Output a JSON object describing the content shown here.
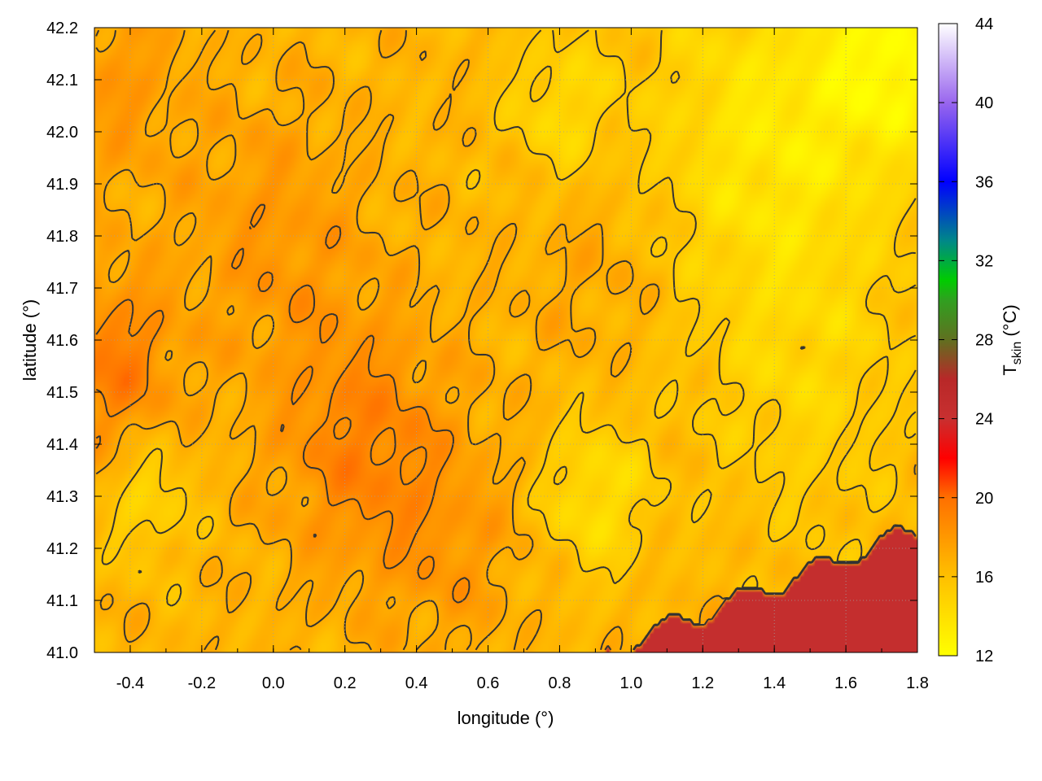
{
  "chart_data": {
    "type": "heatmap",
    "title": "",
    "xlabel": "longitude (°)",
    "ylabel": "latitude (°)",
    "xlim": [
      -0.5,
      1.8
    ],
    "ylim": [
      41.0,
      42.2
    ],
    "x_ticks": [
      "-0.4",
      "-0.2",
      "0.0",
      "0.2",
      "0.4",
      "0.6",
      "0.8",
      "1.0",
      "1.2",
      "1.4",
      "1.6",
      "1.8"
    ],
    "x_tick_values": [
      -0.4,
      -0.2,
      0.0,
      0.2,
      0.4,
      0.6,
      0.8,
      1.0,
      1.2,
      1.4,
      1.6,
      1.8
    ],
    "y_ticks": [
      "41.0",
      "41.1",
      "41.2",
      "41.3",
      "41.4",
      "41.5",
      "41.6",
      "41.7",
      "41.8",
      "41.9",
      "42.0",
      "42.1",
      "42.2"
    ],
    "y_tick_values": [
      41.0,
      41.1,
      41.2,
      41.3,
      41.4,
      41.5,
      41.6,
      41.7,
      41.8,
      41.9,
      42.0,
      42.1,
      42.2
    ],
    "grid": true,
    "colorbar": {
      "label_main": "T",
      "label_sub": "skin",
      "label_unit": " (°C)",
      "range": [
        12,
        44
      ],
      "ticks": [
        "12",
        "16",
        "20",
        "24",
        "28",
        "32",
        "36",
        "40",
        "44"
      ],
      "tick_values": [
        12,
        16,
        20,
        24,
        28,
        32,
        36,
        40,
        44
      ],
      "palette": [
        {
          "v": 12,
          "c": "#ffff00"
        },
        {
          "v": 16,
          "c": "#ffc000"
        },
        {
          "v": 20,
          "c": "#ff7000"
        },
        {
          "v": 22,
          "c": "#ff0000"
        },
        {
          "v": 24,
          "c": "#c83030"
        },
        {
          "v": 26,
          "c": "#b82828"
        },
        {
          "v": 28,
          "c": "#607020"
        },
        {
          "v": 30,
          "c": "#30a020"
        },
        {
          "v": 31,
          "c": "#00cc00"
        },
        {
          "v": 33,
          "c": "#008888"
        },
        {
          "v": 36,
          "c": "#0000ff"
        },
        {
          "v": 40,
          "c": "#9966ee"
        },
        {
          "v": 44,
          "c": "#ffffff"
        }
      ]
    },
    "approximate_field": {
      "base": 16.5,
      "features": [
        {
          "lon": 0.25,
          "lat": 41.4,
          "s": 0.25,
          "a": 2.5
        },
        {
          "lon": -0.45,
          "lat": 41.55,
          "s": 0.18,
          "a": 2.8
        },
        {
          "lon": 0.0,
          "lat": 41.8,
          "s": 0.25,
          "a": 1.5
        },
        {
          "lon": -0.45,
          "lat": 42.1,
          "s": 0.2,
          "a": 1.5
        },
        {
          "lon": 0.5,
          "lat": 41.2,
          "s": 0.2,
          "a": 1.2
        },
        {
          "lon": 0.9,
          "lat": 41.75,
          "s": 0.2,
          "a": 0.8
        },
        {
          "lon": 1.4,
          "lat": 42.0,
          "s": 0.35,
          "a": -3.0
        },
        {
          "lon": 1.75,
          "lat": 42.15,
          "s": 0.2,
          "a": -3.5
        },
        {
          "lon": 0.8,
          "lat": 42.05,
          "s": 0.15,
          "a": -2.0
        },
        {
          "lon": 0.9,
          "lat": 41.3,
          "s": 0.15,
          "a": -2.5
        },
        {
          "lon": 1.5,
          "lat": 41.5,
          "s": 0.3,
          "a": -1.5
        },
        {
          "lon": -0.35,
          "lat": 41.3,
          "s": 0.12,
          "a": -2.0
        }
      ],
      "sea_temperature": 24.5
    }
  }
}
